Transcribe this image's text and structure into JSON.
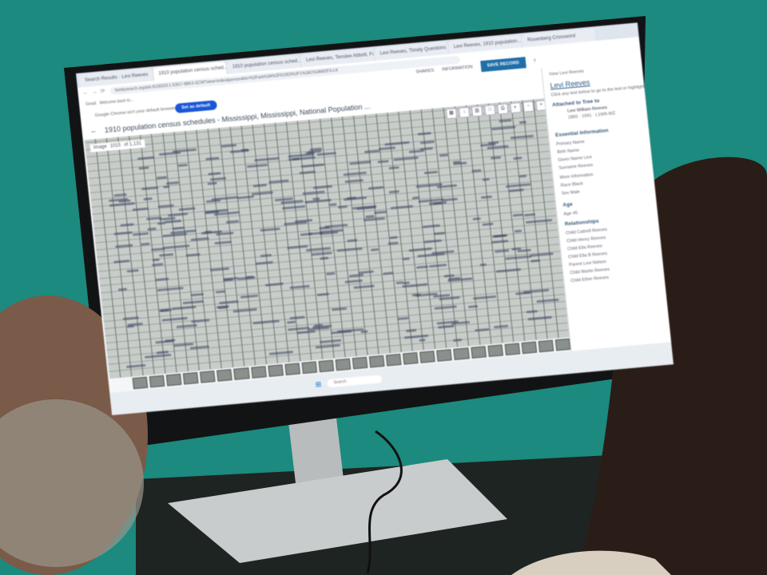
{
  "browser": {
    "tabs": [
      "Search Results · Levi Reeves",
      "1910 population census sched...",
      "1910 population census sched...",
      "Levi Reeves, Tenslee Abbott, Fo...",
      "Levi Reeves, Timely Questions",
      "Levi Reeves, 1910 population...",
      "Rosenberg Crossword"
    ],
    "url": "familysearch.org/ark:/61903/3:1:S3G7-9BK3-SCW?view=index&personArk=%2Fark%3A%2F61903%2F1%3A1%3AM2FS-LK",
    "bookmarks": [
      "Gmail",
      "Welcome back to..."
    ],
    "notice": "Google Chrome isn't your default browser",
    "notice_button": "Set as default"
  },
  "record": {
    "title": "1910 population census schedules - Mississippi, Mississippi, National Population ...",
    "shares": "SHARES",
    "information": "INFORMATION",
    "save_button": "SAVE RECORD",
    "image_label": "Image",
    "image_number": "1015",
    "image_total": "of 1,131"
  },
  "panel": {
    "back": "View Levi Reeves",
    "person": "Levi Reeves",
    "hint": "Click any text below to go to the text or highlights",
    "attached": "Attached to Tree to",
    "tree_person": "Levi William Reeves",
    "tree_dates": "1865 · 1941 · L1W9-WZ",
    "sections": [
      {
        "heading": "Essential Information",
        "items": [
          "Primary Name",
          "Birth Name",
          "Given Name Levi",
          "Surname Reeves",
          "More Information",
          "Race Black",
          "Sex Male"
        ]
      },
      {
        "heading": "Age",
        "items": [
          "Age 45"
        ]
      },
      {
        "heading": "Relationships",
        "items": [
          "Child Cattrell Reeves",
          "Child Henry Reeves",
          "Child Ella Reeves",
          "Child Ella B Reeves",
          "Parent Levi Nelson",
          "Child Martin Reeves",
          "Child Ether Reeves"
        ]
      }
    ]
  },
  "taskbar": {
    "search": "Search"
  },
  "colors": {
    "wall": "#1c8a7e",
    "save_button": "#1f6fa8",
    "default_button": "#1a57d6"
  }
}
